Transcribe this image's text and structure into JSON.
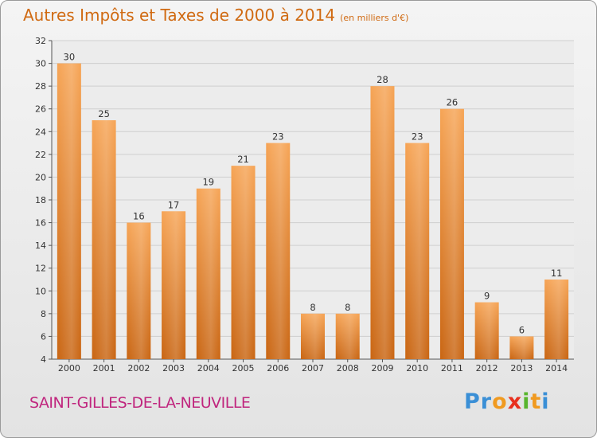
{
  "chart_data": {
    "type": "bar",
    "title": "Autres Impôts et Taxes de 2000 à 2014",
    "unit_label": "(en milliers d'€)",
    "categories": [
      "2000",
      "2001",
      "2002",
      "2003",
      "2004",
      "2005",
      "2006",
      "2007",
      "2008",
      "2009",
      "2010",
      "2011",
      "2012",
      "2013",
      "2014"
    ],
    "values": [
      30,
      25,
      16,
      17,
      19,
      21,
      23,
      8,
      8,
      28,
      23,
      26,
      9,
      6,
      11
    ],
    "ylim": [
      4,
      32
    ],
    "yticks": [
      4,
      6,
      8,
      10,
      12,
      14,
      16,
      18,
      20,
      22,
      24,
      26,
      28,
      30,
      32
    ],
    "grid": true,
    "bar_color": "#e98a2e"
  },
  "footer": {
    "commune": "SAINT-GILLES-DE-LA-NEUVILLE",
    "logo_letters": [
      "P",
      "r",
      "o",
      "x",
      "i",
      "t",
      "i"
    ],
    "logo_colors": [
      "#3a8fd6",
      "#3a8fd6",
      "#f09a20",
      "#e8301e",
      "#58b52d",
      "#f09a20",
      "#3a8fd6"
    ]
  }
}
